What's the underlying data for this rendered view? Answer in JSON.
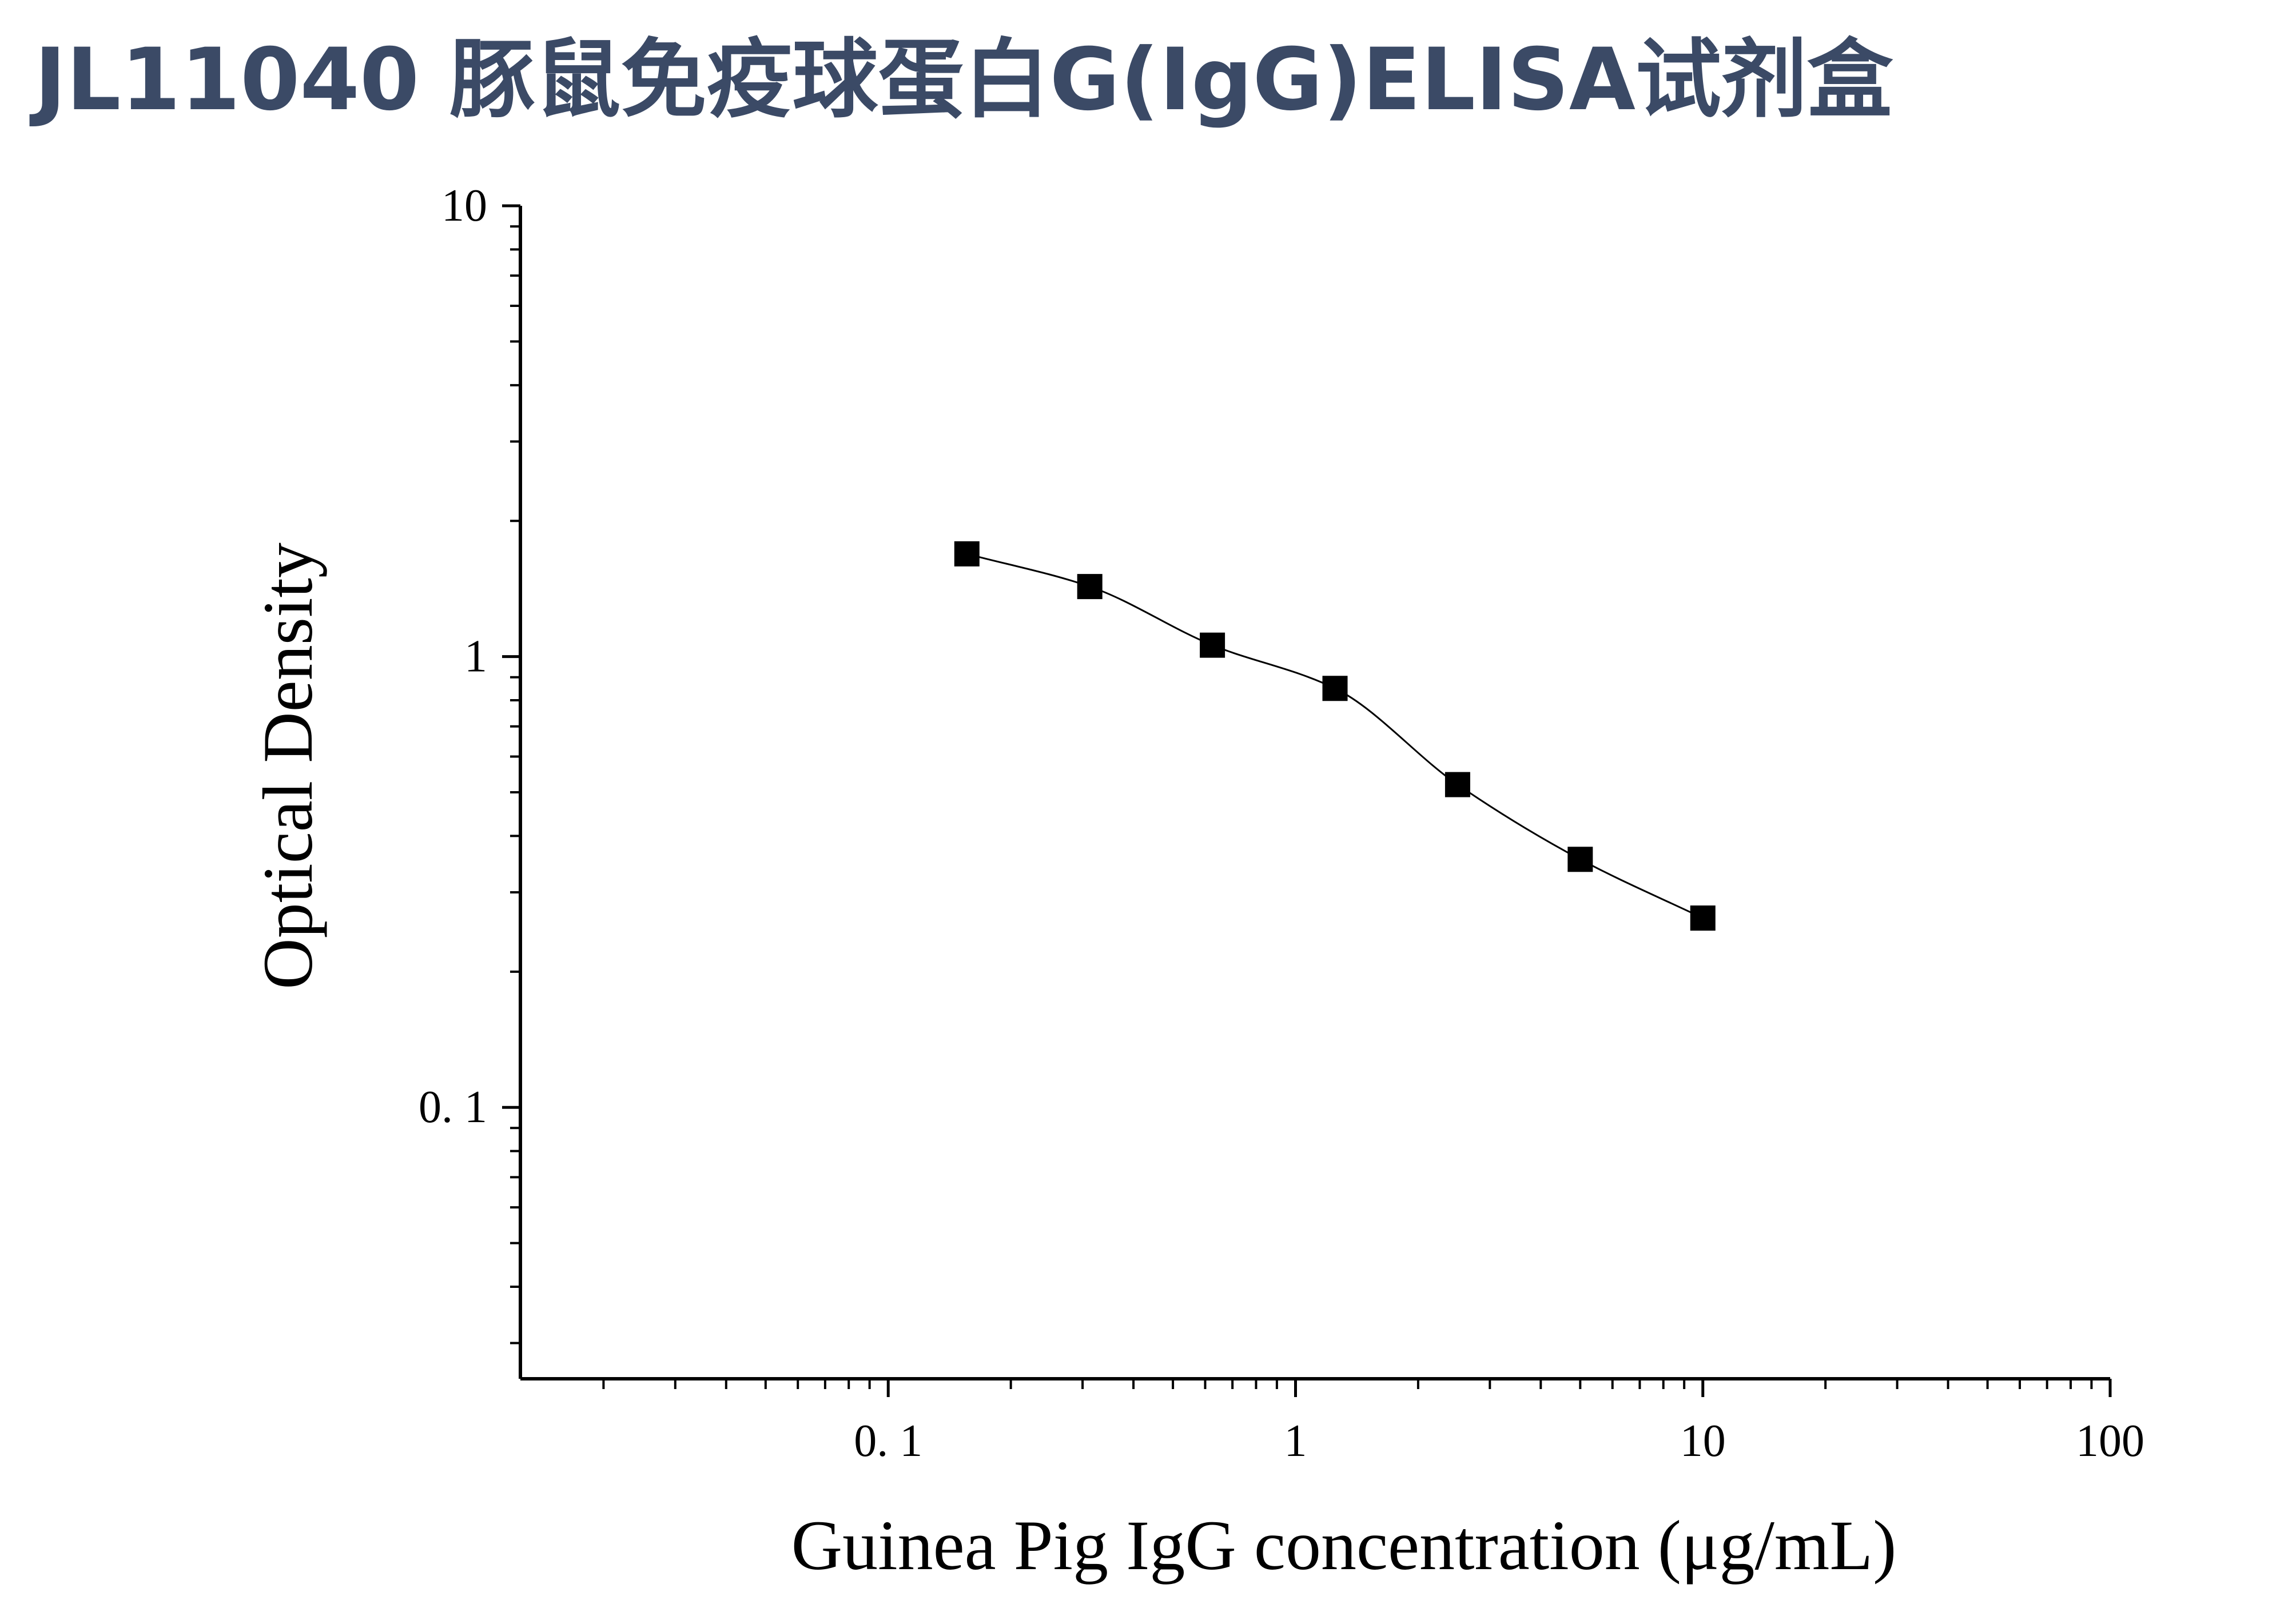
{
  "title": "JL11040 豚鼠免疫球蛋白G(IgG)ELISA试剂盒",
  "chart_data": {
    "type": "scatter",
    "xlabel": "Guinea Pig IgG concentration (μg/mL)",
    "ylabel": "Optical Density",
    "xscale": "log",
    "yscale": "log",
    "xlim": [
      0.0125,
      100
    ],
    "ylim": [
      0.025,
      10
    ],
    "x_ticks": [
      {
        "value": 0.1,
        "label": "0. 1"
      },
      {
        "value": 1,
        "label": "1"
      },
      {
        "value": 10,
        "label": "10"
      },
      {
        "value": 100,
        "label": "100"
      }
    ],
    "y_ticks": [
      {
        "value": 0.1,
        "label": "0. 1"
      },
      {
        "value": 1,
        "label": "1"
      },
      {
        "value": 10,
        "label": "10"
      }
    ],
    "grid": false,
    "marker": "square",
    "fit_curve": true,
    "series": [
      {
        "x": [
          0.156,
          0.3125,
          0.625,
          1.25,
          2.5,
          5,
          10
        ],
        "y": [
          1.69,
          1.43,
          1.06,
          0.85,
          0.52,
          0.355,
          0.263
        ]
      }
    ],
    "colors": {
      "marker": "#000000",
      "axis": "#000000",
      "curve": "#000000",
      "title": "#3b4a66"
    }
  }
}
